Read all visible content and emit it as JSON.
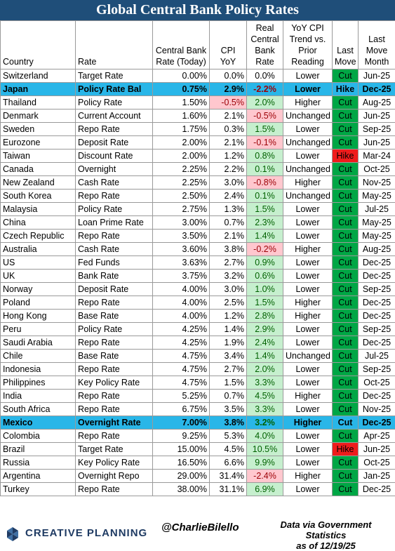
{
  "title": "Global Central Bank Policy Rates",
  "columns": [
    "Country",
    "Rate",
    "Central Bank Rate (Today)",
    "CPI YoY",
    "Real Central Bank Rate",
    "YoY CPI Trend vs. Prior Reading",
    "Last Move",
    "Last Move Month"
  ],
  "chart_data": {
    "type": "table",
    "rows": [
      {
        "country": "Switzerland",
        "rate": "Target Rate",
        "cb_rate": "0.00%",
        "cpi": "0.0%",
        "real": "0.0%",
        "trend": "Lower",
        "move": "Cut",
        "month": "Jun-25"
      },
      {
        "country": "Japan",
        "rate": "Policy Rate Bal",
        "cb_rate": "0.75%",
        "cpi": "2.9%",
        "real": "-2.2%",
        "trend": "Lower",
        "move": "Hike",
        "month": "Dec-25"
      },
      {
        "country": "Thailand",
        "rate": "Policy Rate",
        "cb_rate": "1.50%",
        "cpi": "-0.5%",
        "real": "2.0%",
        "trend": "Higher",
        "move": "Cut",
        "month": "Aug-25"
      },
      {
        "country": "Denmark",
        "rate": "Current Account",
        "cb_rate": "1.60%",
        "cpi": "2.1%",
        "real": "-0.5%",
        "trend": "Unchanged",
        "move": "Cut",
        "month": "Jun-25"
      },
      {
        "country": "Sweden",
        "rate": "Repo Rate",
        "cb_rate": "1.75%",
        "cpi": "0.3%",
        "real": "1.5%",
        "trend": "Lower",
        "move": "Cut",
        "month": "Sep-25"
      },
      {
        "country": "Eurozone",
        "rate": "Deposit Rate",
        "cb_rate": "2.00%",
        "cpi": "2.1%",
        "real": "-0.1%",
        "trend": "Unchanged",
        "move": "Cut",
        "month": "Jun-25"
      },
      {
        "country": "Taiwan",
        "rate": "Discount Rate",
        "cb_rate": "2.00%",
        "cpi": "1.2%",
        "real": "0.8%",
        "trend": "Lower",
        "move": "Hike",
        "month": "Mar-24"
      },
      {
        "country": "Canada",
        "rate": "Overnight",
        "cb_rate": "2.25%",
        "cpi": "2.2%",
        "real": "0.1%",
        "trend": "Unchanged",
        "move": "Cut",
        "month": "Oct-25"
      },
      {
        "country": "New Zealand",
        "rate": "Cash Rate",
        "cb_rate": "2.25%",
        "cpi": "3.0%",
        "real": "-0.8%",
        "trend": "Higher",
        "move": "Cut",
        "month": "Nov-25"
      },
      {
        "country": "South Korea",
        "rate": "Repo Rate",
        "cb_rate": "2.50%",
        "cpi": "2.4%",
        "real": "0.1%",
        "trend": "Unchanged",
        "move": "Cut",
        "month": "May-25"
      },
      {
        "country": "Malaysia",
        "rate": "Policy Rate",
        "cb_rate": "2.75%",
        "cpi": "1.3%",
        "real": "1.5%",
        "trend": "Lower",
        "move": "Cut",
        "month": "Jul-25"
      },
      {
        "country": "China",
        "rate": "Loan Prime Rate",
        "cb_rate": "3.00%",
        "cpi": "0.7%",
        "real": "2.3%",
        "trend": "Lower",
        "move": "Cut",
        "month": "May-25"
      },
      {
        "country": "Czech Republic",
        "rate": "Repo Rate",
        "cb_rate": "3.50%",
        "cpi": "2.1%",
        "real": "1.4%",
        "trend": "Lower",
        "move": "Cut",
        "month": "May-25"
      },
      {
        "country": "Australia",
        "rate": "Cash Rate",
        "cb_rate": "3.60%",
        "cpi": "3.8%",
        "real": "-0.2%",
        "trend": "Higher",
        "move": "Cut",
        "month": "Aug-25"
      },
      {
        "country": "US",
        "rate": "Fed Funds",
        "cb_rate": "3.63%",
        "cpi": "2.7%",
        "real": "0.9%",
        "trend": "Lower",
        "move": "Cut",
        "month": "Dec-25"
      },
      {
        "country": "UK",
        "rate": "Bank Rate",
        "cb_rate": "3.75%",
        "cpi": "3.2%",
        "real": "0.6%",
        "trend": "Lower",
        "move": "Cut",
        "month": "Dec-25"
      },
      {
        "country": "Norway",
        "rate": "Deposit Rate",
        "cb_rate": "4.00%",
        "cpi": "3.0%",
        "real": "1.0%",
        "trend": "Lower",
        "move": "Cut",
        "month": "Sep-25"
      },
      {
        "country": "Poland",
        "rate": "Repo Rate",
        "cb_rate": "4.00%",
        "cpi": "2.5%",
        "real": "1.5%",
        "trend": "Higher",
        "move": "Cut",
        "month": "Dec-25"
      },
      {
        "country": "Hong Kong",
        "rate": "Base Rate",
        "cb_rate": "4.00%",
        "cpi": "1.2%",
        "real": "2.8%",
        "trend": "Higher",
        "move": "Cut",
        "month": "Dec-25"
      },
      {
        "country": "Peru",
        "rate": "Policy Rate",
        "cb_rate": "4.25%",
        "cpi": "1.4%",
        "real": "2.9%",
        "trend": "Lower",
        "move": "Cut",
        "month": "Sep-25"
      },
      {
        "country": "Saudi Arabia",
        "rate": "Repo Rate",
        "cb_rate": "4.25%",
        "cpi": "1.9%",
        "real": "2.4%",
        "trend": "Lower",
        "move": "Cut",
        "month": "Dec-25"
      },
      {
        "country": "Chile",
        "rate": "Base Rate",
        "cb_rate": "4.75%",
        "cpi": "3.4%",
        "real": "1.4%",
        "trend": "Unchanged",
        "move": "Cut",
        "month": "Jul-25"
      },
      {
        "country": "Indonesia",
        "rate": "Repo Rate",
        "cb_rate": "4.75%",
        "cpi": "2.7%",
        "real": "2.0%",
        "trend": "Lower",
        "move": "Cut",
        "month": "Sep-25"
      },
      {
        "country": "Philippines",
        "rate": "Key Policy Rate",
        "cb_rate": "4.75%",
        "cpi": "1.5%",
        "real": "3.3%",
        "trend": "Lower",
        "move": "Cut",
        "month": "Oct-25"
      },
      {
        "country": "India",
        "rate": "Repo Rate",
        "cb_rate": "5.25%",
        "cpi": "0.7%",
        "real": "4.5%",
        "trend": "Higher",
        "move": "Cut",
        "month": "Dec-25"
      },
      {
        "country": "South Africa",
        "rate": "Repo Rate",
        "cb_rate": "6.75%",
        "cpi": "3.5%",
        "real": "3.3%",
        "trend": "Lower",
        "move": "Cut",
        "month": "Nov-25"
      },
      {
        "country": "Mexico",
        "rate": "Overnight Rate",
        "cb_rate": "7.00%",
        "cpi": "3.8%",
        "real": "3.2%",
        "trend": "Higher",
        "move": "Cut",
        "month": "Dec-25"
      },
      {
        "country": "Colombia",
        "rate": "Repo Rate",
        "cb_rate": "9.25%",
        "cpi": "5.3%",
        "real": "4.0%",
        "trend": "Lower",
        "move": "Cut",
        "month": "Apr-25"
      },
      {
        "country": "Brazil",
        "rate": "Target Rate",
        "cb_rate": "15.00%",
        "cpi": "4.5%",
        "real": "10.5%",
        "trend": "Lower",
        "move": "Hike",
        "month": "Jun-25"
      },
      {
        "country": "Russia",
        "rate": "Key Policy Rate",
        "cb_rate": "16.50%",
        "cpi": "6.6%",
        "real": "9.9%",
        "trend": "Lower",
        "move": "Cut",
        "month": "Oct-25"
      },
      {
        "country": "Argentina",
        "rate": "Overnight Repo",
        "cb_rate": "29.00%",
        "cpi": "31.4%",
        "real": "-2.4%",
        "trend": "Higher",
        "move": "Cut",
        "month": "Jan-25"
      },
      {
        "country": "Turkey",
        "rate": "Repo Rate",
        "cb_rate": "38.00%",
        "cpi": "31.1%",
        "real": "6.9%",
        "trend": "Lower",
        "move": "Cut",
        "month": "Dec-25"
      }
    ],
    "highlighted_rows": [
      "Japan",
      "Mexico"
    ]
  },
  "colors": {
    "title_bg": "#1f4e79",
    "highlight_row": "#29b6e8",
    "positive_fill": "#c6efce",
    "negative_fill": "#ffc7ce",
    "cut": "#00a645",
    "hike": "#ef1c1c"
  },
  "footer": {
    "logo_text": "CREATIVE PLANNING",
    "logo_icon": "creative-planning-logo-icon",
    "handle": "@CharlieBilello",
    "source_line1": "Data via Government Statistics",
    "source_line2": "as of 12/19/25"
  }
}
